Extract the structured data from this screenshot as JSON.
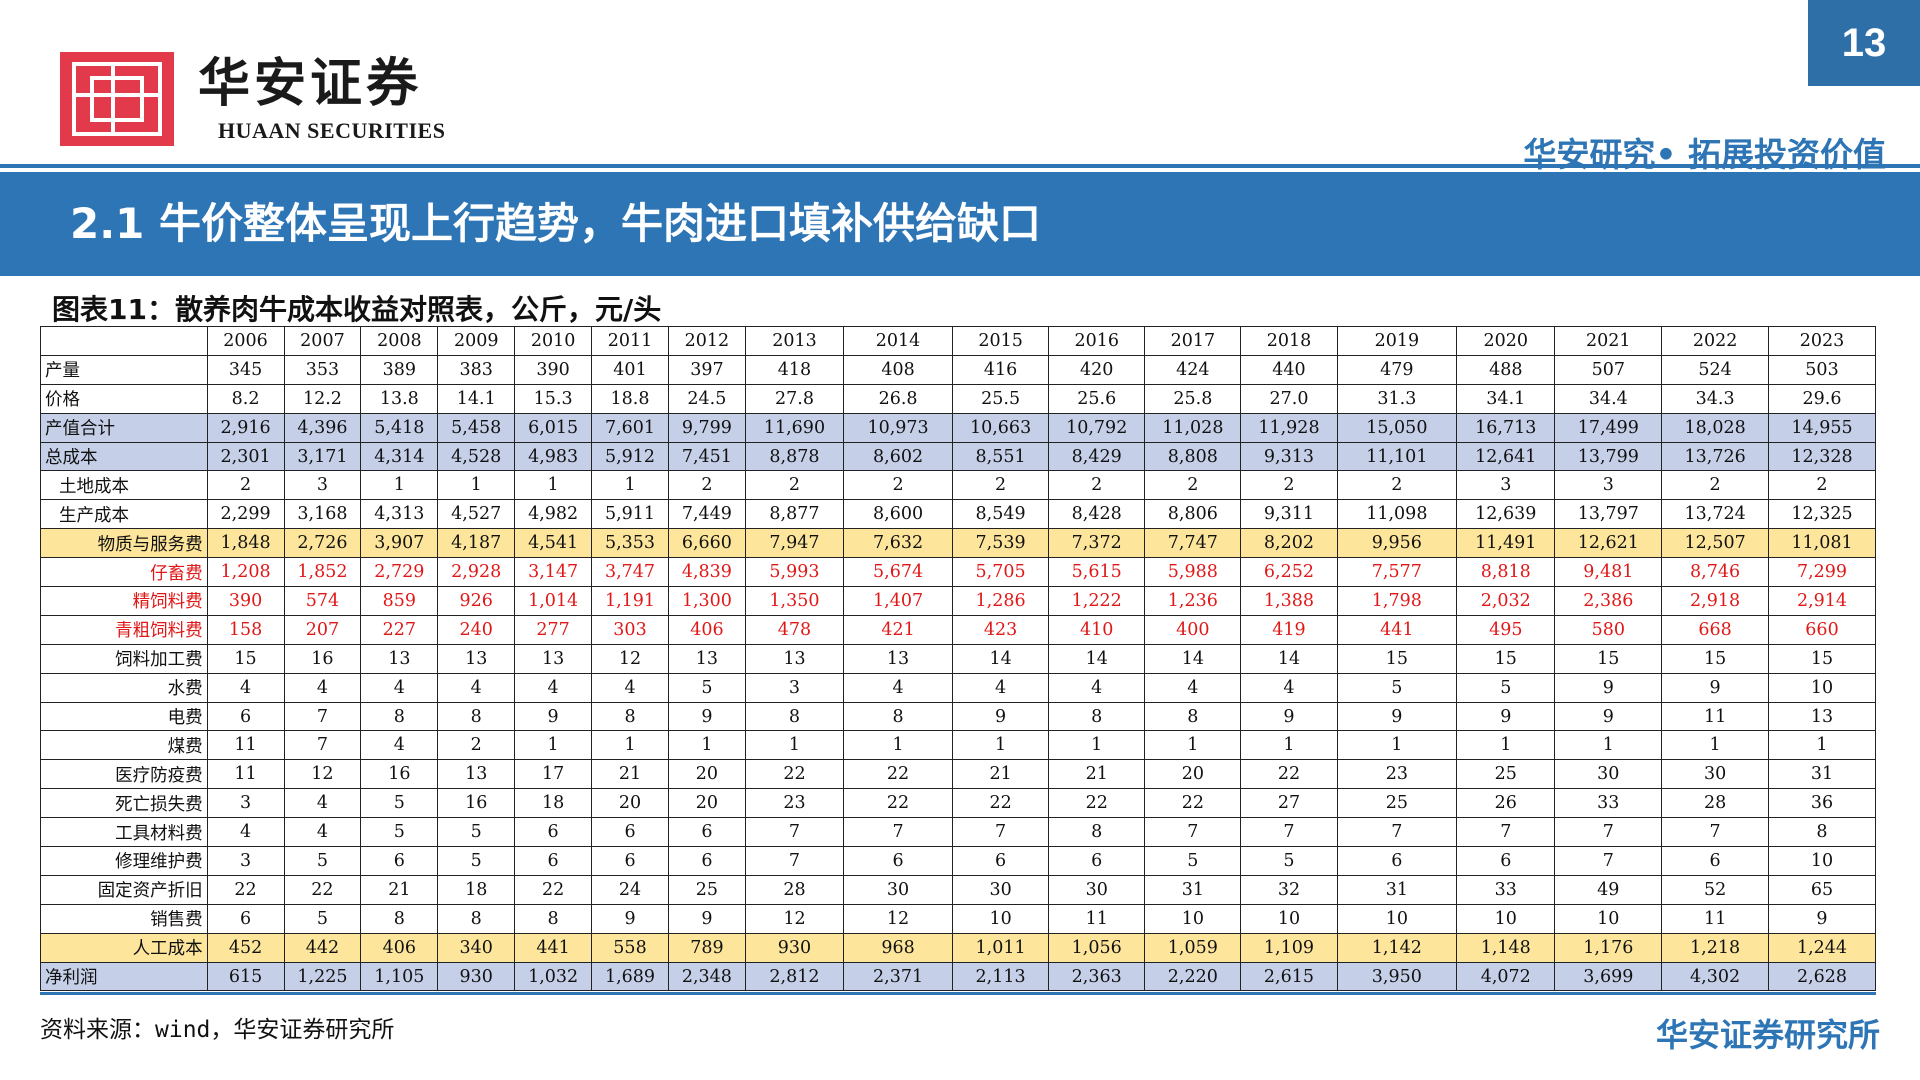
{
  "header": {
    "logo_cn": "华安证券",
    "logo_en": "HUAAN SECURITIES",
    "page_number": "13",
    "slogan": "华安研究• 拓展投资价值"
  },
  "banner": {
    "title": "2.1 牛价整体呈现上行趋势，牛肉进口填补供给缺口"
  },
  "table": {
    "title": "图表11：散养肉牛成本收益对照表，公斤，元/头",
    "years": [
      "2006",
      "2007",
      "2008",
      "2009",
      "2010",
      "2011",
      "2012",
      "2013",
      "2014",
      "2015",
      "2016",
      "2017",
      "2018",
      "2019",
      "2020",
      "2021",
      "2022",
      "2023"
    ],
    "rows": [
      {
        "label": "产量",
        "values": [
          "345",
          "353",
          "389",
          "383",
          "390",
          "401",
          "397",
          "418",
          "408",
          "416",
          "420",
          "424",
          "440",
          "479",
          "488",
          "507",
          "524",
          "503"
        ]
      },
      {
        "label": "价格",
        "values": [
          "8.2",
          "12.2",
          "13.8",
          "14.1",
          "15.3",
          "18.8",
          "24.5",
          "27.8",
          "26.8",
          "25.5",
          "25.6",
          "25.8",
          "27.0",
          "31.3",
          "34.1",
          "34.4",
          "34.3",
          "29.6"
        ]
      },
      {
        "label": "产值合计",
        "values": [
          "2,916",
          "4,396",
          "5,418",
          "5,458",
          "6,015",
          "7,601",
          "9,799",
          "11,690",
          "10,973",
          "10,663",
          "10,792",
          "11,028",
          "11,928",
          "15,050",
          "16,713",
          "17,499",
          "18,028",
          "14,955"
        ]
      },
      {
        "label": "总成本",
        "values": [
          "2,301",
          "3,171",
          "4,314",
          "4,528",
          "4,983",
          "5,912",
          "7,451",
          "8,878",
          "8,602",
          "8,551",
          "8,429",
          "8,808",
          "9,313",
          "11,101",
          "12,641",
          "13,799",
          "13,726",
          "12,328"
        ]
      },
      {
        "label": "土地成本",
        "values": [
          "2",
          "3",
          "1",
          "1",
          "1",
          "1",
          "2",
          "2",
          "2",
          "2",
          "2",
          "2",
          "2",
          "2",
          "3",
          "3",
          "2",
          "2"
        ]
      },
      {
        "label": "生产成本",
        "values": [
          "2,299",
          "3,168",
          "4,313",
          "4,527",
          "4,982",
          "5,911",
          "7,449",
          "8,877",
          "8,600",
          "8,549",
          "8,428",
          "8,806",
          "9,311",
          "11,098",
          "12,639",
          "13,797",
          "13,724",
          "12,325"
        ]
      },
      {
        "label": "物质与服务费",
        "values": [
          "1,848",
          "2,726",
          "3,907",
          "4,187",
          "4,541",
          "5,353",
          "6,660",
          "7,947",
          "7,632",
          "7,539",
          "7,372",
          "7,747",
          "8,202",
          "9,956",
          "11,491",
          "12,621",
          "12,507",
          "11,081"
        ]
      },
      {
        "label": "仔畜费",
        "values": [
          "1,208",
          "1,852",
          "2,729",
          "2,928",
          "3,147",
          "3,747",
          "4,839",
          "5,993",
          "5,674",
          "5,705",
          "5,615",
          "5,988",
          "6,252",
          "7,577",
          "8,818",
          "9,481",
          "8,746",
          "7,299"
        ]
      },
      {
        "label": "精饲料费",
        "values": [
          "390",
          "574",
          "859",
          "926",
          "1,014",
          "1,191",
          "1,300",
          "1,350",
          "1,407",
          "1,286",
          "1,222",
          "1,236",
          "1,388",
          "1,798",
          "2,032",
          "2,386",
          "2,918",
          "2,914"
        ]
      },
      {
        "label": "青粗饲料费",
        "values": [
          "158",
          "207",
          "227",
          "240",
          "277",
          "303",
          "406",
          "478",
          "421",
          "423",
          "410",
          "400",
          "419",
          "441",
          "495",
          "580",
          "668",
          "660"
        ]
      },
      {
        "label": "饲料加工费",
        "values": [
          "15",
          "16",
          "13",
          "13",
          "13",
          "12",
          "13",
          "13",
          "13",
          "14",
          "14",
          "14",
          "14",
          "15",
          "15",
          "15",
          "15",
          "15"
        ]
      },
      {
        "label": "水费",
        "values": [
          "4",
          "4",
          "4",
          "4",
          "4",
          "4",
          "5",
          "3",
          "4",
          "4",
          "4",
          "4",
          "4",
          "5",
          "5",
          "9",
          "9",
          "10"
        ]
      },
      {
        "label": "电费",
        "values": [
          "6",
          "7",
          "8",
          "8",
          "9",
          "8",
          "9",
          "8",
          "8",
          "9",
          "8",
          "8",
          "9",
          "9",
          "9",
          "9",
          "11",
          "13"
        ]
      },
      {
        "label": "煤费",
        "values": [
          "11",
          "7",
          "4",
          "2",
          "1",
          "1",
          "1",
          "1",
          "1",
          "1",
          "1",
          "1",
          "1",
          "1",
          "1",
          "1",
          "1",
          "1"
        ]
      },
      {
        "label": "医疗防疫费",
        "values": [
          "11",
          "12",
          "16",
          "13",
          "17",
          "21",
          "20",
          "22",
          "22",
          "21",
          "21",
          "20",
          "22",
          "23",
          "25",
          "30",
          "30",
          "31"
        ]
      },
      {
        "label": "死亡损失费",
        "values": [
          "3",
          "4",
          "5",
          "16",
          "18",
          "20",
          "20",
          "23",
          "22",
          "22",
          "22",
          "22",
          "27",
          "25",
          "26",
          "33",
          "28",
          "36"
        ]
      },
      {
        "label": "工具材料费",
        "values": [
          "4",
          "4",
          "5",
          "5",
          "6",
          "6",
          "6",
          "7",
          "7",
          "7",
          "8",
          "7",
          "7",
          "7",
          "7",
          "7",
          "7",
          "8"
        ]
      },
      {
        "label": "修理维护费",
        "values": [
          "3",
          "5",
          "6",
          "5",
          "6",
          "6",
          "6",
          "7",
          "6",
          "6",
          "6",
          "5",
          "5",
          "6",
          "6",
          "7",
          "6",
          "10"
        ]
      },
      {
        "label": "固定资产折旧",
        "values": [
          "22",
          "22",
          "21",
          "18",
          "22",
          "24",
          "25",
          "28",
          "30",
          "30",
          "30",
          "31",
          "32",
          "31",
          "33",
          "49",
          "52",
          "65"
        ]
      },
      {
        "label": "销售费",
        "values": [
          "6",
          "5",
          "8",
          "8",
          "8",
          "9",
          "9",
          "12",
          "12",
          "10",
          "11",
          "10",
          "10",
          "10",
          "10",
          "10",
          "11",
          "9"
        ]
      },
      {
        "label": "人工成本",
        "values": [
          "452",
          "442",
          "406",
          "340",
          "441",
          "558",
          "789",
          "930",
          "968",
          "1,011",
          "1,056",
          "1,059",
          "1,109",
          "1,142",
          "1,148",
          "1,176",
          "1,218",
          "1,244"
        ]
      },
      {
        "label": "净利润",
        "values": [
          "615",
          "1,225",
          "1,105",
          "930",
          "1,032",
          "1,689",
          "2,348",
          "2,812",
          "2,371",
          "2,113",
          "2,363",
          "2,220",
          "2,615",
          "3,950",
          "4,072",
          "3,699",
          "4,302",
          "2,628"
        ]
      }
    ]
  },
  "footer": {
    "source": "资料来源：wind，华安证券研究所",
    "brand": "华安证券研究所"
  },
  "colors": {
    "accent": "#2e75b6",
    "logo_red": "#e23a4a",
    "blue_row": "#c5cfe8",
    "yellow_row": "#fde69b",
    "red_text": "#e01818"
  }
}
